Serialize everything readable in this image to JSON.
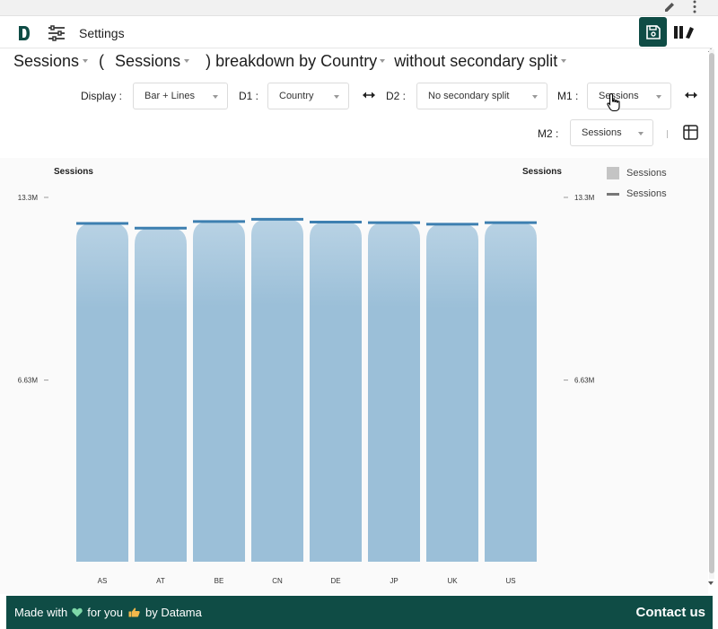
{
  "header": {
    "settings_label": "Settings",
    "icons": [
      "logo-icon",
      "settings-sliders-icon",
      "save-icon",
      "library-icon",
      "pen-icon",
      "more-vert-icon"
    ]
  },
  "title": {
    "metric": "Sessions",
    "open_paren": "(",
    "metric2": "Sessions",
    "breakdown_text": ") breakdown by Country",
    "split_text": "without secondary split"
  },
  "controls": {
    "display_label": "Display :",
    "display_value": "Bar + Lines",
    "d1_label": "D1 :",
    "d1_value": "Country",
    "d2_label": "D2 :",
    "d2_value": "No secondary split",
    "m1_label": "M1 :",
    "m1_value": "Sessions",
    "m2_label": "M2 :",
    "m2_value": "Sessions"
  },
  "colors": {
    "brand": "#0f4c45",
    "bar": "#9bbfd8",
    "line": "#3d7fb0"
  },
  "chart_data": {
    "type": "bar",
    "combo": "bar + lines",
    "left_axis_title": "Sessions",
    "right_axis_title": "Sessions",
    "categories": [
      "AS",
      "AT",
      "BE",
      "CN",
      "DE",
      "JP",
      "UK",
      "US"
    ],
    "y_ticks": [
      {
        "value": 13.3,
        "label": "13.3M"
      },
      {
        "value": 6.63,
        "label": "6.63M"
      }
    ],
    "ylim": [
      0,
      13.3
    ],
    "series": [
      {
        "name": "Sessions",
        "type": "bar",
        "values": [
          12.35,
          12.18,
          12.42,
          12.5,
          12.4,
          12.38,
          12.32,
          12.38
        ]
      },
      {
        "name": "Sessions",
        "type": "line",
        "values": [
          12.35,
          12.18,
          12.42,
          12.5,
          12.4,
          12.38,
          12.32,
          12.38
        ]
      }
    ],
    "legend": {
      "placement": "top-right",
      "items": [
        {
          "label": "Sessions",
          "kind": "bar"
        },
        {
          "label": "Sessions",
          "kind": "line"
        }
      ]
    }
  },
  "footer": {
    "made_with": "Made with",
    "for_you": "for you",
    "by": "by Datama",
    "contact": "Contact us"
  }
}
